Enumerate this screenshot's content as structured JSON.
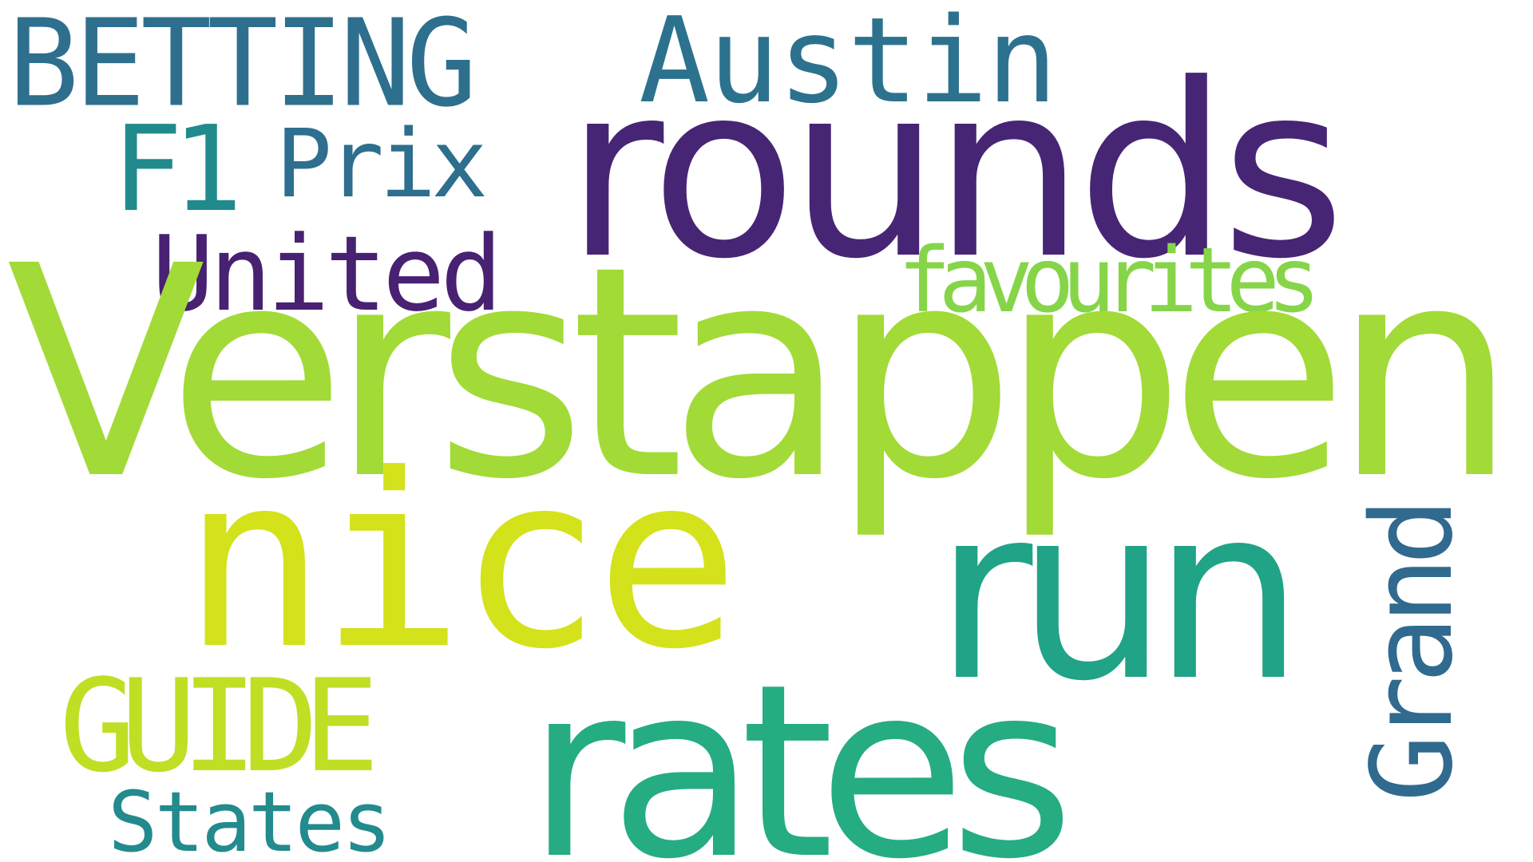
{
  "word_cloud": {
    "background": "#ffffff",
    "words": [
      {
        "id": "betting",
        "text": "BETTING",
        "color": "#2e6f8e"
      },
      {
        "id": "austin",
        "text": "Austin",
        "color": "#2c728e"
      },
      {
        "id": "f1",
        "text": "F1",
        "color": "#218a8d"
      },
      {
        "id": "prix",
        "text": "Prix",
        "color": "#2e6e8e"
      },
      {
        "id": "rounds",
        "text": "rounds",
        "color": "#472575"
      },
      {
        "id": "united",
        "text": "United",
        "color": "#482172"
      },
      {
        "id": "favourites",
        "text": "favourites",
        "color": "#86d549"
      },
      {
        "id": "verstappen",
        "text": "Verstappen",
        "color": "#a2da37"
      },
      {
        "id": "nice",
        "text": "nice",
        "color": "#d3e21b"
      },
      {
        "id": "run",
        "text": "run",
        "color": "#20a386"
      },
      {
        "id": "grand",
        "text": "Grand",
        "color": "#306a8e"
      },
      {
        "id": "guide",
        "text": "GUIDE",
        "color": "#bfdf25"
      },
      {
        "id": "states",
        "text": "States",
        "color": "#238a8d"
      },
      {
        "id": "rates",
        "text": "rates",
        "color": "#25ac82"
      }
    ]
  }
}
